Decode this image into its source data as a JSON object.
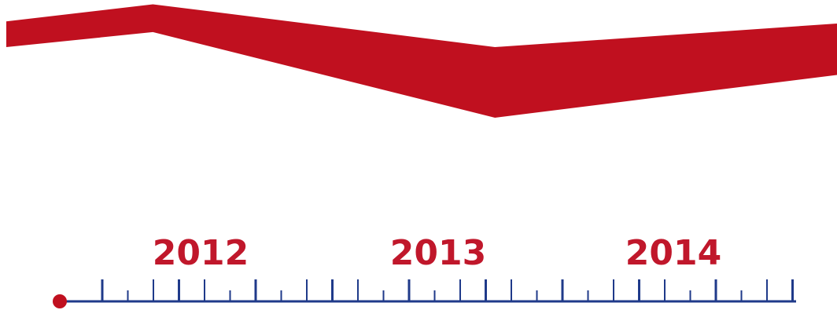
{
  "chart_data": {
    "type": "area",
    "title": "",
    "xlabel": "",
    "ylabel": "",
    "years": [
      "2012",
      "2013",
      "2014"
    ],
    "band": {
      "x_months": [
        0,
        6,
        20,
        34
      ],
      "upper": [
        100,
        108,
        88,
        99
      ],
      "lower": [
        88,
        95,
        55,
        75
      ]
    },
    "ylim": [
      0,
      110
    ],
    "timeline": {
      "start_month": 0,
      "ticks_per_year": 12,
      "major_every": 3,
      "year_label_months": [
        6,
        15,
        24
      ]
    },
    "colors": {
      "band": "#c0101f",
      "axis": "#1f3a8a",
      "marker": "#c0101f",
      "year_text": "#c0172b"
    }
  }
}
